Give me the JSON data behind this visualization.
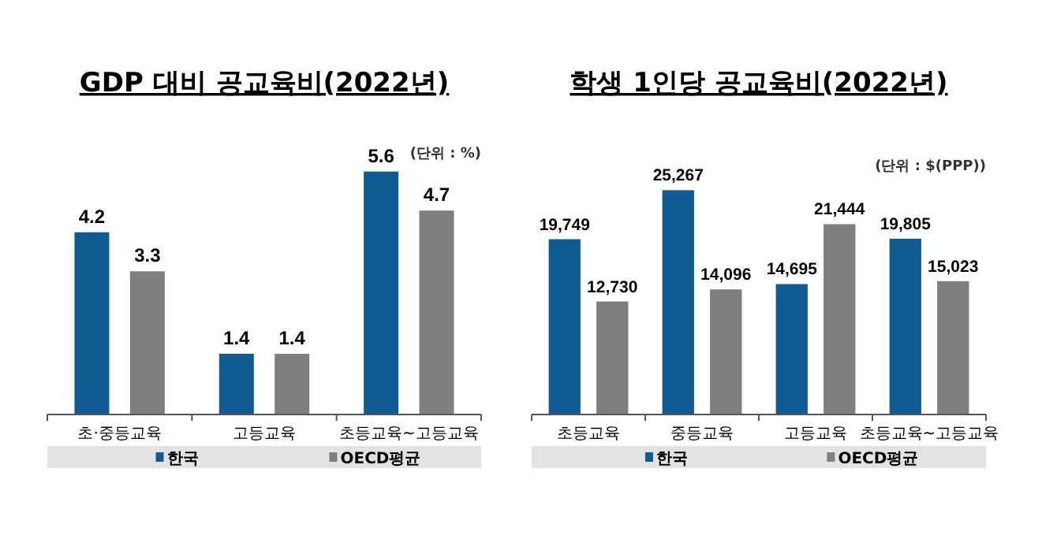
{
  "chart_data": [
    {
      "type": "bar",
      "title": "GDP 대비 공교육비(2022년)",
      "categories": [
        "초·중등교육",
        "고등교육",
        "초등교육~고등교육"
      ],
      "series": [
        {
          "name": "한국",
          "color": "#0f5b94",
          "values": [
            4.2,
            1.4,
            5.6
          ]
        },
        {
          "name": "OECD평균",
          "color": "#7f7f7f",
          "values": [
            3.3,
            1.4,
            4.7
          ]
        }
      ],
      "data_labels": true,
      "legend": "bottom",
      "annotations": [
        "(단위 : %)"
      ]
    },
    {
      "type": "bar",
      "title": "학생 1인당 공교육비(2022년)",
      "categories": [
        "초등교육",
        "중등교육",
        "고등교육",
        "초등교육~고등교육"
      ],
      "series": [
        {
          "name": "한국",
          "color": "#0f5b94",
          "values": [
            19749,
            25267,
            14695,
            19805
          ],
          "value_labels": [
            "19,749",
            "25,267",
            "14,695",
            "19,805"
          ]
        },
        {
          "name": "OECD평균",
          "color": "#7f7f7f",
          "values": [
            12730,
            14096,
            21444,
            15023
          ],
          "value_labels": [
            "12,730",
            "14,096",
            "21,444",
            "15,023"
          ]
        }
      ],
      "legend": "bottom",
      "annotations": [
        "(단위 : $(PPP))"
      ]
    }
  ]
}
